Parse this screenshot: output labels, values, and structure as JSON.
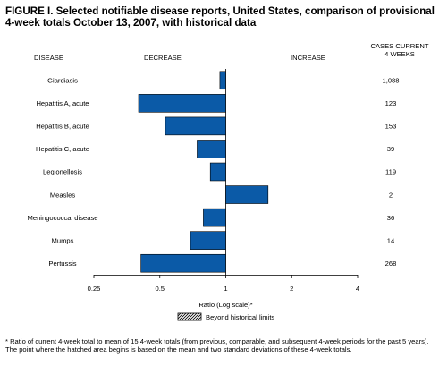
{
  "header": {
    "title": "FIGURE I. Selected notifiable disease reports, United States, comparison of provisional 4-week totals October 13, 2007, with historical data",
    "disease_label": "DISEASE",
    "decrease_label": "DECREASE",
    "increase_label": "INCREASE",
    "cases_label_line1": "CASES CURRENT",
    "cases_label_line2": "4 WEEKS"
  },
  "chart_data": {
    "type": "bar",
    "orientation": "horizontal",
    "scale": "log",
    "baseline": 1,
    "categories": [
      "Giardiasis",
      "Hepatitis A, acute",
      "Hepatitis B, acute",
      "Hepatitis C, acute",
      "Legionellosis",
      "Measles",
      "Meningococcal disease",
      "Mumps",
      "Pertussis"
    ],
    "values": [
      0.94,
      0.4,
      0.53,
      0.74,
      0.85,
      1.56,
      0.79,
      0.69,
      0.41
    ],
    "cases": [
      "1,088",
      "123",
      "153",
      "39",
      "119",
      "2",
      "36",
      "14",
      "268"
    ],
    "xticks": [
      0.25,
      0.5,
      1,
      2,
      4
    ],
    "xtick_labels": [
      "0.25",
      "0.5",
      "1",
      "2",
      "4"
    ],
    "xlim": [
      0.25,
      4
    ],
    "xlabel": "Ratio (Log scale)*",
    "legend": "Beyond historical limits",
    "bar_color": "#0b5aa7"
  },
  "footnote": "* Ratio of current 4-week total to mean of 15 4-week totals (from previous, comparable, and subsequent 4-week periods for the past 5 years). The point where the hatched area begins is based on the mean and two standard deviations of these 4-week totals."
}
